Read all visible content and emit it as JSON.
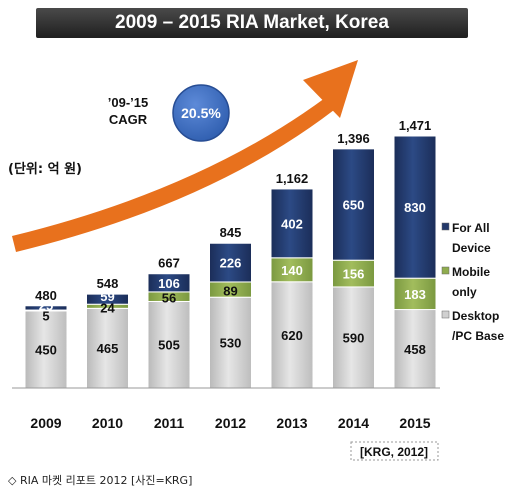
{
  "title": "2009 – 2015 RIA Market, Korea",
  "cagr": {
    "range": "’09-’15",
    "label": "CAGR",
    "value": "20.5%"
  },
  "unit": "(단위: 억 원)",
  "source": "[KRG, 2012]",
  "footer": "◇ RIA 마켓 리포트 2012 [사진=KRG]",
  "colors": {
    "desktop": "#d0d0d0",
    "mobile": "#8fac4e",
    "all_device": "#22386a",
    "arrow": "#e8711d",
    "cagr_circle": "#3f6fc1"
  },
  "chart_data": {
    "type": "bar",
    "stacked": true,
    "categories": [
      "2009",
      "2010",
      "2011",
      "2012",
      "2013",
      "2014",
      "2015"
    ],
    "series": [
      {
        "name": "Desktop /PC Base",
        "values": [
          450,
          465,
          505,
          530,
          620,
          590,
          458
        ]
      },
      {
        "name": "Mobile only",
        "values": [
          5,
          24,
          56,
          89,
          140,
          156,
          183
        ]
      },
      {
        "name": "For All Device",
        "values": [
          25,
          59,
          106,
          226,
          402,
          650,
          830
        ]
      }
    ],
    "totals": [
      480,
      548,
      667,
      845,
      1162,
      1396,
      1471
    ],
    "legend_lines": [
      [
        "For All",
        "Device"
      ],
      [
        "Mobile",
        "only"
      ],
      [
        "Desktop",
        "/PC Base"
      ]
    ],
    "legend_position": "right",
    "ylim": [
      0,
      1471
    ],
    "grid": false
  }
}
